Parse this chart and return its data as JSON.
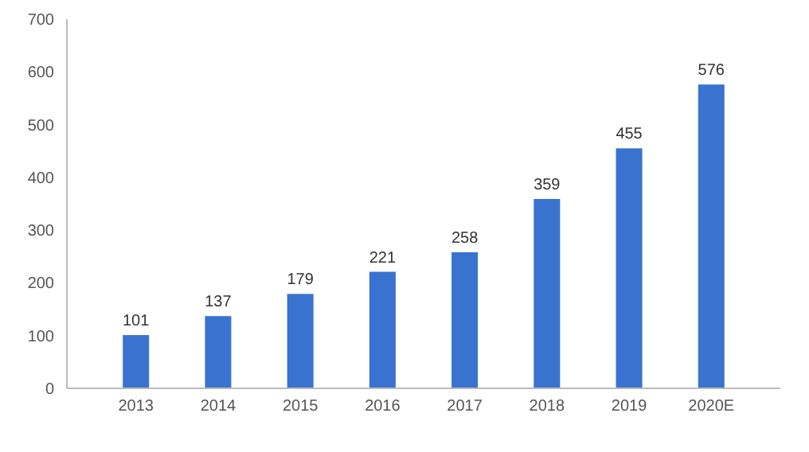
{
  "chart_data": {
    "type": "bar",
    "categories": [
      "2013",
      "2014",
      "2015",
      "2016",
      "2017",
      "2018",
      "2019",
      "2020E"
    ],
    "values": [
      101,
      137,
      179,
      221,
      258,
      359,
      455,
      576
    ],
    "color": "#3a73cf",
    "ylim": [
      0,
      700
    ],
    "yticks": [
      0,
      100,
      200,
      300,
      400,
      500,
      600,
      700
    ],
    "grid": false,
    "data_labels": true
  }
}
